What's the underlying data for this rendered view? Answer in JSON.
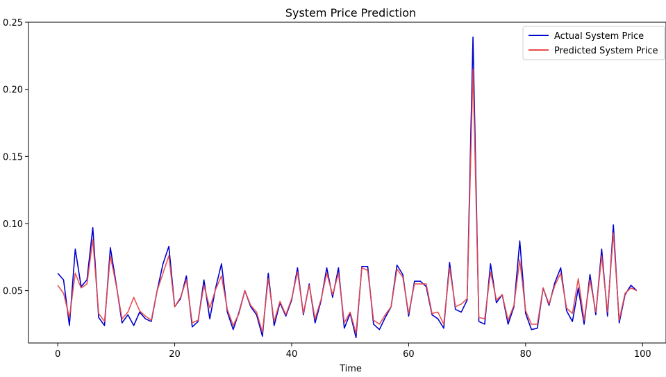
{
  "chart_data": {
    "type": "line",
    "title": "System Price Prediction",
    "xlabel": "Time",
    "ylabel": "",
    "xlim": [
      -5,
      104
    ],
    "ylim": [
      0.011,
      0.25
    ],
    "xticks": [
      0,
      20,
      40,
      60,
      80,
      100
    ],
    "xtick_labels": [
      "0",
      "20",
      "40",
      "60",
      "80",
      "100"
    ],
    "yticks": [
      0.05,
      0.1,
      0.15,
      0.2,
      0.25
    ],
    "ytick_labels": [
      "0.05",
      "0.10",
      "0.15",
      "0.20",
      "0.25"
    ],
    "grid": false,
    "legend_position": "top-right",
    "x": [
      0,
      1,
      2,
      3,
      4,
      5,
      6,
      7,
      8,
      9,
      10,
      11,
      12,
      13,
      14,
      15,
      16,
      17,
      18,
      19,
      20,
      21,
      22,
      23,
      24,
      25,
      26,
      27,
      28,
      29,
      30,
      31,
      32,
      33,
      34,
      35,
      36,
      37,
      38,
      39,
      40,
      41,
      42,
      43,
      44,
      45,
      46,
      47,
      48,
      49,
      50,
      51,
      52,
      53,
      54,
      55,
      56,
      57,
      58,
      59,
      60,
      61,
      62,
      63,
      64,
      65,
      66,
      67,
      68,
      69,
      70,
      71,
      72,
      73,
      74,
      75,
      76,
      77,
      78,
      79,
      80,
      81,
      82,
      83,
      84,
      85,
      86,
      87,
      88,
      89,
      90,
      91,
      92,
      93,
      94,
      95,
      96,
      97,
      98,
      99
    ],
    "series": [
      {
        "name": "Actual System Price",
        "color": "#0000cc",
        "values": [
          0.063,
          0.058,
          0.024,
          0.081,
          0.053,
          0.058,
          0.097,
          0.03,
          0.024,
          0.082,
          0.055,
          0.026,
          0.032,
          0.024,
          0.034,
          0.029,
          0.027,
          0.05,
          0.07,
          0.083,
          0.038,
          0.044,
          0.061,
          0.023,
          0.027,
          0.058,
          0.029,
          0.052,
          0.07,
          0.034,
          0.021,
          0.034,
          0.05,
          0.038,
          0.032,
          0.016,
          0.063,
          0.024,
          0.041,
          0.031,
          0.043,
          0.067,
          0.032,
          0.055,
          0.026,
          0.042,
          0.067,
          0.045,
          0.067,
          0.022,
          0.033,
          0.015,
          0.068,
          0.068,
          0.025,
          0.021,
          0.03,
          0.038,
          0.069,
          0.062,
          0.031,
          0.057,
          0.057,
          0.053,
          0.032,
          0.029,
          0.022,
          0.071,
          0.036,
          0.034,
          0.043,
          0.239,
          0.027,
          0.025,
          0.07,
          0.041,
          0.047,
          0.025,
          0.038,
          0.087,
          0.033,
          0.021,
          0.022,
          0.052,
          0.039,
          0.056,
          0.067,
          0.035,
          0.027,
          0.052,
          0.025,
          0.062,
          0.032,
          0.081,
          0.031,
          0.099,
          0.026,
          0.047,
          0.054,
          0.05
        ]
      },
      {
        "name": "Predicted System Price",
        "color": "#e8494b",
        "values": [
          0.054,
          0.048,
          0.03,
          0.063,
          0.052,
          0.055,
          0.088,
          0.033,
          0.027,
          0.076,
          0.054,
          0.029,
          0.034,
          0.045,
          0.035,
          0.031,
          0.028,
          0.05,
          0.063,
          0.076,
          0.038,
          0.045,
          0.058,
          0.026,
          0.028,
          0.054,
          0.037,
          0.051,
          0.061,
          0.036,
          0.024,
          0.033,
          0.05,
          0.039,
          0.034,
          0.019,
          0.059,
          0.027,
          0.042,
          0.032,
          0.044,
          0.064,
          0.033,
          0.054,
          0.029,
          0.043,
          0.063,
          0.047,
          0.063,
          0.026,
          0.034,
          0.018,
          0.067,
          0.065,
          0.028,
          0.025,
          0.032,
          0.038,
          0.066,
          0.06,
          0.033,
          0.055,
          0.055,
          0.055,
          0.033,
          0.034,
          0.025,
          0.067,
          0.038,
          0.04,
          0.044,
          0.215,
          0.03,
          0.029,
          0.064,
          0.043,
          0.047,
          0.028,
          0.039,
          0.073,
          0.035,
          0.025,
          0.025,
          0.052,
          0.04,
          0.054,
          0.063,
          0.037,
          0.033,
          0.059,
          0.028,
          0.058,
          0.034,
          0.076,
          0.034,
          0.093,
          0.028,
          0.048,
          0.052,
          0.05
        ]
      }
    ]
  }
}
